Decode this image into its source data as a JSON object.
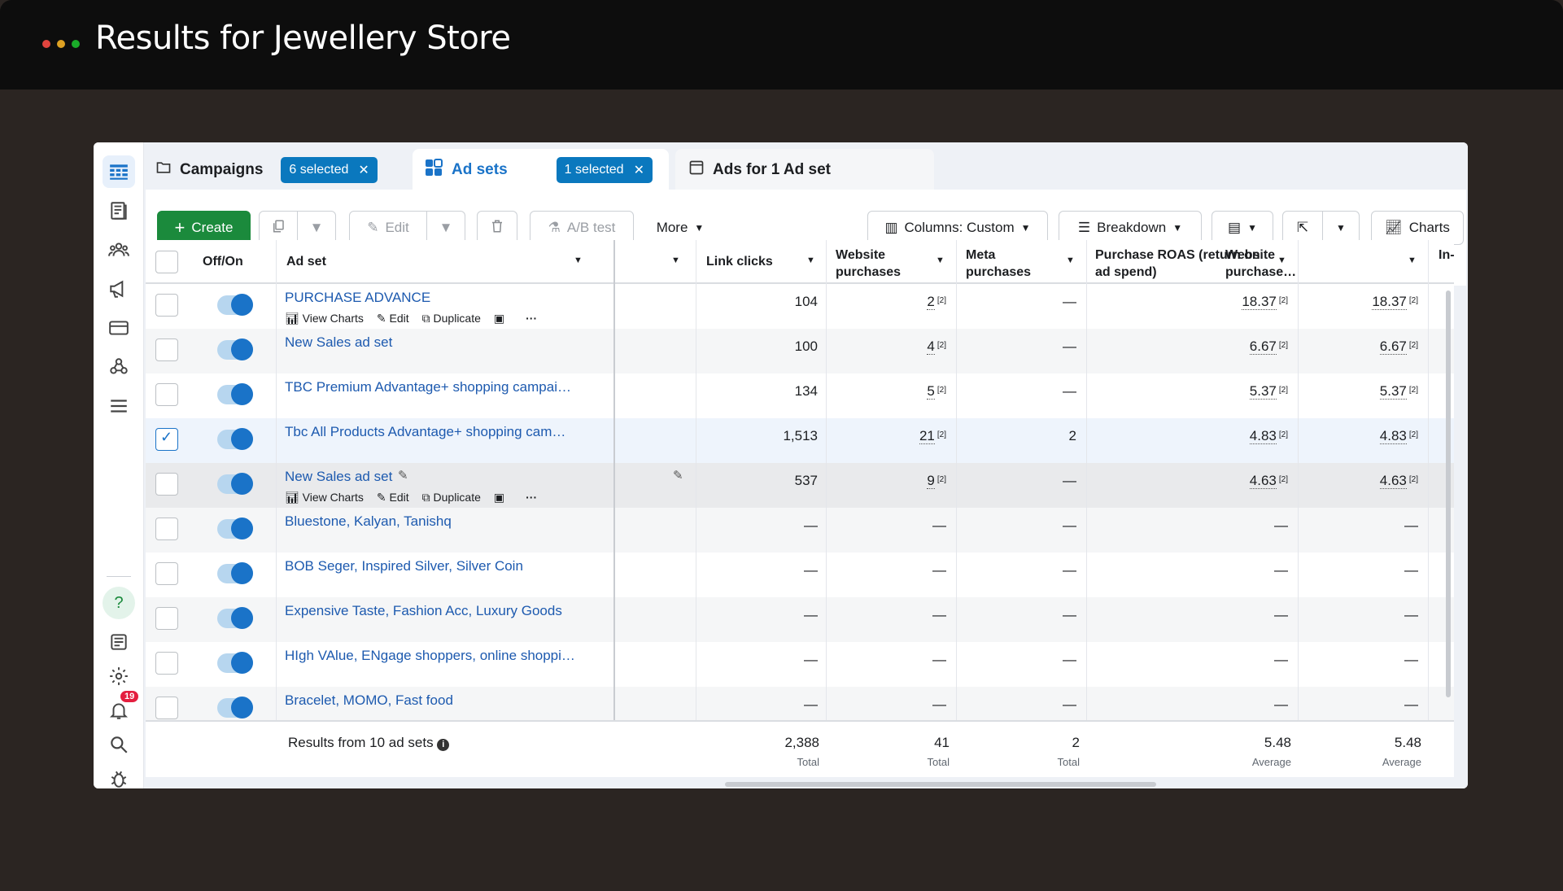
{
  "window": {
    "title": "Results for Jewellery Store",
    "dot_colors": [
      "#e0443e",
      "#dea123",
      "#1aab29"
    ]
  },
  "tabs": [
    {
      "label": "Campaigns",
      "chip": "6 selected"
    },
    {
      "label": "Ad sets",
      "chip": "1 selected"
    },
    {
      "label": "Ads for 1 Ad set"
    }
  ],
  "toolbar": {
    "create": "Create",
    "edit": "Edit",
    "ab_test": "A/B test",
    "more": "More",
    "columns": "Columns: Custom",
    "breakdown": "Breakdown",
    "charts": "Charts"
  },
  "sidebar": {
    "notification_count": "19"
  },
  "table": {
    "headers": {
      "off_on": "Off/On",
      "ad_set": "Ad set",
      "link_clicks": "Link clicks",
      "website_purchases": "Website purchases",
      "meta_purchases": "Meta purchases",
      "roas": "Purchase ROAS (return on ad spend)",
      "website_purchase_roas": "Website purchase…",
      "in_app": "In-a purc"
    },
    "actions": {
      "view_charts": "View Charts",
      "edit": "Edit",
      "duplicate": "Duplicate"
    },
    "note_marker": "[2]",
    "rows": [
      {
        "name": "PURCHASE ADVANCE",
        "link_clicks": "104",
        "website_purchases": "2",
        "meta_purchases": "—",
        "roas": "18.37",
        "wroas": "18.37",
        "checked": false,
        "actions": true
      },
      {
        "name": "New Sales ad set",
        "link_clicks": "100",
        "website_purchases": "4",
        "meta_purchases": "—",
        "roas": "6.67",
        "wroas": "6.67",
        "checked": false,
        "actions": false
      },
      {
        "name": "TBC Premium Advantage+ shopping campai…",
        "link_clicks": "134",
        "website_purchases": "5",
        "meta_purchases": "—",
        "roas": "5.37",
        "wroas": "5.37",
        "checked": false,
        "actions": false
      },
      {
        "name": "Tbc All Products Advantage+ shopping cam…",
        "link_clicks": "1,513",
        "website_purchases": "21",
        "meta_purchases": "2",
        "roas": "4.83",
        "wroas": "4.83",
        "checked": true,
        "actions": false
      },
      {
        "name": "New Sales ad set",
        "link_clicks": "537",
        "website_purchases": "9",
        "meta_purchases": "—",
        "roas": "4.63",
        "wroas": "4.63",
        "checked": false,
        "actions": true,
        "hover": true
      },
      {
        "name": "Bluestone, Kalyan, Tanishq",
        "link_clicks": "—",
        "website_purchases": "—",
        "meta_purchases": "—",
        "roas": "—",
        "wroas": "—",
        "checked": false,
        "actions": false
      },
      {
        "name": "BOB Seger, Inspired Silver, Silver Coin",
        "link_clicks": "—",
        "website_purchases": "—",
        "meta_purchases": "—",
        "roas": "—",
        "wroas": "—",
        "checked": false,
        "actions": false
      },
      {
        "name": "Expensive Taste, Fashion Acc, Luxury Goods",
        "link_clicks": "—",
        "website_purchases": "—",
        "meta_purchases": "—",
        "roas": "—",
        "wroas": "—",
        "checked": false,
        "actions": false
      },
      {
        "name": "HIgh VAlue, ENgage shoppers, online shoppi…",
        "link_clicks": "—",
        "website_purchases": "—",
        "meta_purchases": "—",
        "roas": "—",
        "wroas": "—",
        "checked": false,
        "actions": false
      },
      {
        "name": "Bracelet, MOMO, Fast food",
        "link_clicks": "—",
        "website_purchases": "—",
        "meta_purchases": "—",
        "roas": "—",
        "wroas": "—",
        "checked": false,
        "actions": false
      }
    ],
    "footer": {
      "label": "Results from 10 ad sets",
      "link_clicks": "2,388",
      "link_clicks_label": "Total",
      "website_purchases": "41",
      "website_purchases_label": "Total",
      "meta_purchases": "2",
      "meta_purchases_label": "Total",
      "roas": "5.48",
      "roas_label": "Average",
      "wroas": "5.48",
      "wroas_label": "Average"
    }
  },
  "colors": {
    "accent": "#0a78be",
    "create": "#1b8a3c",
    "link": "#1d5aaf"
  }
}
